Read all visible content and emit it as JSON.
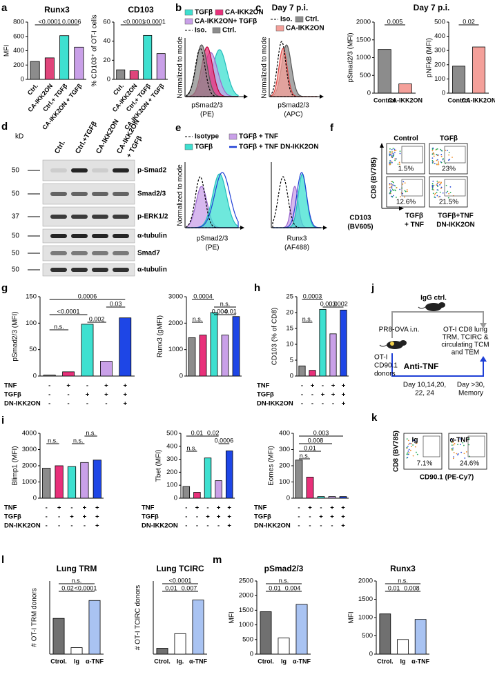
{
  "letters": [
    "a",
    "b",
    "c",
    "d",
    "e",
    "f",
    "g",
    "h",
    "i",
    "j",
    "k",
    "l",
    "m"
  ],
  "bar_charts": [
    {
      "type": "bar",
      "title": "Runx3",
      "ylabel": "MFI",
      "categories": [
        "Ctrl.",
        "CA-IKK2ON",
        "Ctrl.+ TGFβ",
        "CA-IKK2ON + TGFβ"
      ],
      "category_colors": [
        "#000000",
        "#e3242b",
        "#000000",
        "#e3242b"
      ],
      "values": [
        250,
        300,
        610,
        450
      ],
      "colors": [
        "#8c8c8c",
        "#e0457b",
        "#3ee0d0",
        "#c9a0e8"
      ],
      "ylim": [
        0,
        800
      ],
      "yticks": [
        0,
        200,
        400,
        600,
        800
      ],
      "annotations": [
        "<0.0001",
        "0.0006"
      ]
    },
    {
      "type": "bar",
      "title": "CD103",
      "ylabel": "% CD103⁺ of OT-I cells",
      "categories": [
        "Ctrl.",
        "CA-IKK2ON",
        "Ctrl.+ TGFβ",
        "CA-IKK2ON + TGFβ"
      ],
      "category_colors": [
        "#000000",
        "#e3242b",
        "#000000",
        "#e3242b"
      ],
      "values": [
        10,
        9,
        46,
        27
      ],
      "colors": [
        "#8c8c8c",
        "#e0457b",
        "#3ee0d0",
        "#c9a0e8"
      ],
      "ylim": [
        0,
        60
      ],
      "yticks": [
        0,
        20,
        40,
        60
      ],
      "annotations": [
        "<0.0001",
        "<0.0001"
      ]
    },
    {
      "type": "bar",
      "ylabel": "pSmad2/3 (MFI)",
      "categories": [
        "Control",
        "CA-IKK2ON"
      ],
      "category_colors": [
        "#000000",
        "#e3242b"
      ],
      "values": [
        1230,
        260
      ],
      "colors": [
        "#8c8c8c",
        "#f4a09a"
      ],
      "ylim": [
        0,
        2000
      ],
      "yticks": [
        0,
        500,
        1000,
        1500,
        2000
      ],
      "annotations": [
        "0.005"
      ]
    },
    {
      "type": "bar",
      "ylabel": "pNFkB (MFI)",
      "categories": [
        "Control",
        "CA-IKK2ON"
      ],
      "category_colors": [
        "#000000",
        "#e3242b"
      ],
      "values": [
        190,
        325
      ],
      "colors": [
        "#8c8c8c",
        "#f4a09a"
      ],
      "ylim": [
        0,
        500
      ],
      "yticks": [
        0,
        100,
        200,
        300,
        400,
        500
      ],
      "annotations": [
        "0.02"
      ]
    },
    {
      "type": "bar",
      "ylabel": "pSmad2/3 (MFI)",
      "values": [
        2,
        8,
        98,
        28,
        110
      ],
      "colors": [
        "#8c8c8c",
        "#e8307a",
        "#3ee0d0",
        "#c9a0e8",
        "#1e46e6"
      ],
      "ylim": [
        0,
        150
      ],
      "yticks": [
        0,
        50,
        100,
        150
      ],
      "annotations": [
        "0.0006",
        "0.03",
        "<0.0001",
        "0.002",
        "n.s."
      ],
      "conditions": [
        {
          "label": "TNF",
          "marks": [
            "-",
            "+",
            "-",
            "+",
            "+"
          ]
        },
        {
          "label": "TGFβ",
          "marks": [
            "-",
            "-",
            "+",
            "+",
            "+"
          ]
        },
        {
          "label": "DN-IKK2ON",
          "marks": [
            "-",
            "-",
            "-",
            "-",
            "+"
          ]
        }
      ]
    },
    {
      "type": "bar",
      "ylabel": "Runx3 (gMFI)",
      "values": [
        1450,
        1550,
        2400,
        1550,
        2250
      ],
      "colors": [
        "#8c8c8c",
        "#e8307a",
        "#3ee0d0",
        "#c9a0e8",
        "#1e46e6"
      ],
      "ylim": [
        0,
        3000
      ],
      "yticks": [
        0,
        1000,
        2000,
        3000
      ],
      "annotations": [
        "0.0004",
        "n.s.",
        "0.004",
        "0.01",
        "n.s."
      ]
    },
    {
      "type": "bar",
      "ylabel": "CD103 (% of CD8)",
      "values": [
        3.2,
        1.8,
        21,
        13.3,
        20.8
      ],
      "colors": [
        "#8c8c8c",
        "#e8307a",
        "#3ee0d0",
        "#c9a0e8",
        "#1e46e6"
      ],
      "ylim": [
        0,
        25
      ],
      "yticks": [
        0,
        5,
        10,
        15,
        20,
        25
      ],
      "annotations": [
        "0.0003",
        "0.003",
        "0.0002",
        "n.s."
      ],
      "conditions": [
        {
          "label": "TNF",
          "marks": [
            "-",
            "+",
            "-",
            "+",
            "+"
          ]
        },
        {
          "label": "TGFβ",
          "marks": [
            "-",
            "-",
            "+",
            "+",
            "+"
          ]
        },
        {
          "label": "DN-IKK2ON",
          "marks": [
            "-",
            "-",
            "-",
            "-",
            "+"
          ]
        }
      ]
    },
    {
      "type": "bar",
      "ylabel": "Blimp1 (MFI)",
      "values": [
        1850,
        2000,
        1950,
        2200,
        2350
      ],
      "colors": [
        "#8c8c8c",
        "#e8307a",
        "#3ee0d0",
        "#c9a0e8",
        "#1e46e6"
      ],
      "ylim": [
        0,
        4000
      ],
      "yticks": [
        0,
        1000,
        2000,
        3000,
        4000
      ],
      "annotations": [
        "n.s.",
        "n.s.",
        "n.s."
      ],
      "conditions": [
        {
          "label": "TNF",
          "marks": [
            "-",
            "+",
            "-",
            "+",
            "+"
          ]
        },
        {
          "label": "TGFβ",
          "marks": [
            "-",
            "-",
            "+",
            "+",
            "+"
          ]
        },
        {
          "label": "DN-IKK2ON",
          "marks": [
            "-",
            "-",
            "-",
            "-",
            "+"
          ]
        }
      ]
    },
    {
      "type": "bar",
      "ylabel": "Tbet (MFI)",
      "values": [
        90,
        45,
        310,
        135,
        365
      ],
      "colors": [
        "#8c8c8c",
        "#e8307a",
        "#3ee0d0",
        "#c9a0e8",
        "#1e46e6"
      ],
      "ylim": [
        0,
        500
      ],
      "yticks": [
        0,
        100,
        200,
        300,
        400,
        500
      ],
      "annotations": [
        "0.01",
        "0.02",
        "0.0006",
        "n.s."
      ],
      "conditions": [
        {
          "label": "TNF",
          "marks": [
            "-",
            "+",
            "-",
            "+",
            "+"
          ]
        },
        {
          "label": "TGFβ",
          "marks": [
            "-",
            "-",
            "+",
            "+",
            "+"
          ]
        },
        {
          "label": "DN-IKK2ON",
          "marks": [
            "-",
            "-",
            "-",
            "-",
            "+"
          ]
        }
      ]
    },
    {
      "type": "bar",
      "ylabel": "Eomes (MFI)",
      "values": [
        235,
        130,
        10,
        10,
        10
      ],
      "colors": [
        "#8c8c8c",
        "#e8307a",
        "#3ee0d0",
        "#c9a0e8",
        "#1e46e6"
      ],
      "ylim": [
        0,
        400
      ],
      "yticks": [
        0,
        100,
        200,
        300,
        400
      ],
      "annotations": [
        "0.003",
        "0.008",
        "0.01",
        "n.s."
      ],
      "conditions": [
        {
          "label": "TNF",
          "marks": [
            "-",
            "+",
            "-",
            "+",
            "+"
          ]
        },
        {
          "label": "TGFβ",
          "marks": [
            "-",
            "-",
            "+",
            "+",
            "+"
          ]
        },
        {
          "label": "DN-IKK2ON",
          "marks": [
            "-",
            "-",
            "-",
            "-",
            "+"
          ]
        }
      ]
    },
    {
      "type": "bar",
      "title": "Lung TRM",
      "ylabel": "# OT-I TRM donors",
      "categories": [
        "Ctrol.",
        "Ig",
        "α-TNF"
      ],
      "values": [
        220,
        40,
        330
      ],
      "colors": [
        "#707070",
        "#ffffff",
        "#a9c3f2"
      ],
      "ylim": [
        0,
        450
      ],
      "annotations": [
        "n.s.",
        "0.02",
        "<0.0001"
      ]
    },
    {
      "type": "bar",
      "title": "Lung TCIRC",
      "ylabel": "# OT-I TCIRC donors",
      "categories": [
        "Ctrol.",
        "Ig.",
        "α-TNF"
      ],
      "values": [
        40,
        140,
        370
      ],
      "colors": [
        "#707070",
        "#ffffff",
        "#a9c3f2"
      ],
      "ylim": [
        0,
        500
      ],
      "annotations": [
        "<0.0001",
        "0.01",
        "0.007"
      ]
    },
    {
      "type": "bar",
      "title": "pSmad2/3",
      "ylabel": "MFI",
      "categories": [
        "Ctrol.",
        "Ig",
        "α-TNF"
      ],
      "values": [
        1450,
        550,
        1700
      ],
      "colors": [
        "#707070",
        "#ffffff",
        "#a9c3f2"
      ],
      "ylim": [
        0,
        2500
      ],
      "yticks": [
        0,
        500,
        1000,
        1500,
        2000,
        2500
      ],
      "annotations": [
        "n.s.",
        "0.01",
        "0.004"
      ]
    },
    {
      "type": "bar",
      "title": "Runx3",
      "ylabel": "MFI",
      "categories": [
        "Ctrol.",
        "Ig",
        "α-TNF"
      ],
      "values": [
        1100,
        400,
        950
      ],
      "colors": [
        "#707070",
        "#ffffff",
        "#a9c3f2"
      ],
      "ylim": [
        0,
        2000
      ],
      "yticks": [
        0,
        500,
        1000,
        1500,
        2000
      ],
      "annotations": [
        "n.s.",
        "0.01",
        "0.008"
      ]
    }
  ],
  "panel_b": {
    "legend": [
      "TGFβ",
      "CA-IKK2ON",
      "CA-IKK2ON+ TGFβ",
      "Iso.",
      "Ctrl."
    ],
    "ylabel": "Normalized to mode",
    "xlabel": [
      "pSmad2/3",
      "(PE)"
    ]
  },
  "panel_c": {
    "title": "Day 7 p.i.",
    "legend": [
      "Iso.",
      "Ctrl.",
      "CA-IKK2ON"
    ],
    "ylabel": "Normalized to mode",
    "xlabel": [
      "pSmad2/3",
      "(APC)"
    ]
  },
  "panel_c_right": {
    "title": "Day 7 p.i."
  },
  "panel_d": {
    "unit": "kD",
    "lanes": [
      "Ctrl.",
      "Ctrl.+TGFβ",
      "CA-IKK2ON",
      "CA-IKK2ON",
      "+ TGFβ"
    ],
    "markers": [
      "50",
      "50",
      "37",
      "50",
      "50",
      "50"
    ],
    "bands": [
      "p-Smad2",
      "Smad2/3",
      "p-ERK1/2",
      "α-tubulin",
      "Smad7",
      "α-tubulin"
    ]
  },
  "panel_e": {
    "legend": [
      "Isotype",
      "TGFβ + TNF",
      "TGFβ",
      "TGFβ + TNF",
      "DN-IKK2ON"
    ],
    "ylabel": "Normalized to mode",
    "plots": [
      [
        "pSmad2/3",
        "(PE)"
      ],
      [
        "Runx3",
        "(AF488)"
      ]
    ]
  },
  "panel_f": {
    "columns": [
      "Control",
      "TGFβ"
    ],
    "percents": [
      "1.5%",
      "23%",
      "12.6%",
      "21.5%"
    ],
    "ylabel": "CD8 (BV785)",
    "xlabel": [
      "CD103",
      "(BV605)"
    ],
    "bottom_left": [
      "TGFβ",
      "+ TNF"
    ],
    "bottom_right": [
      "TGFβ+TNF",
      "DN-IKK2ON"
    ]
  },
  "panel_j": {
    "igg": "IgG ctrl.",
    "infection": "PR8-OVA i.n.",
    "donors": [
      "OT-I",
      "CD90.1",
      "donors"
    ],
    "anti": "Anti-TNF",
    "days": [
      "Day 10,14,20,",
      "22, 24"
    ],
    "memory": [
      "Day >30,",
      "Memory"
    ],
    "readout": [
      "OT-I CD8 lung",
      "TRM, TCIRC &",
      "circulating TCM",
      "and TEM"
    ]
  },
  "panel_k": {
    "plots": [
      "Ig",
      "α-TNF"
    ],
    "percents": [
      "7.1%",
      "24.6%"
    ],
    "ylabel": "CD8 (BV785)",
    "xlabel": "CD90.1 (PE-Cy7)"
  }
}
